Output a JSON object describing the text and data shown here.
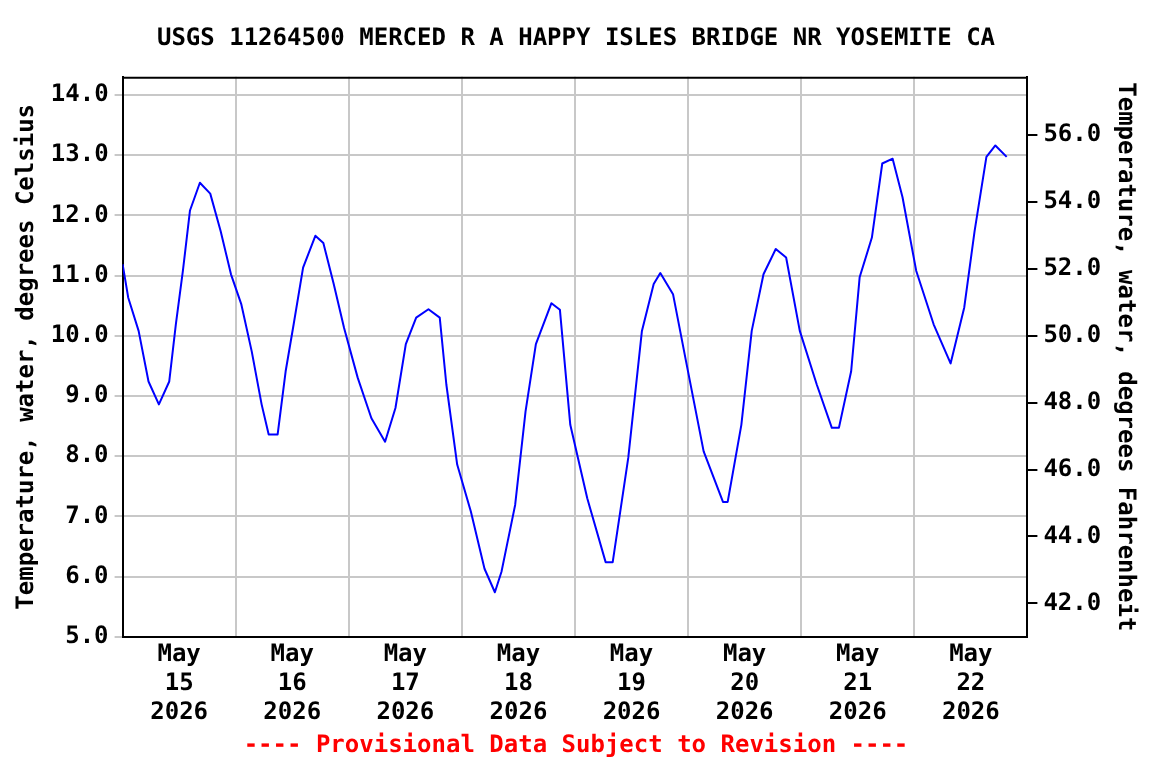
{
  "chart_data": {
    "type": "line",
    "title": "USGS 11264500 MERCED R A HAPPY ISLES BRIDGE NR YOSEMITE CA",
    "ylabel": "Temperature, water, degrees Celsius",
    "y2label": "Temperature, water, degrees Fahrenheit",
    "annotations": [
      "---- Provisional Data Subject to Revision ----"
    ],
    "x": [
      "2026-05-15T00:00",
      "2026-05-15T01:12",
      "2026-05-15T03:24",
      "2026-05-15T05:30",
      "2026-05-15T07:42",
      "2026-05-15T09:54",
      "2026-05-15T11:18",
      "2026-05-15T12:48",
      "2026-05-15T14:18",
      "2026-05-15T16:24",
      "2026-05-15T18:36",
      "2026-05-15T20:48",
      "2026-05-15T23:00",
      "2026-05-16T01:12",
      "2026-05-16T03:24",
      "2026-05-16T05:30",
      "2026-05-16T07:00",
      "2026-05-16T08:54",
      "2026-05-16T10:36",
      "2026-05-16T12:18",
      "2026-05-16T14:18",
      "2026-05-16T16:54",
      "2026-05-16T18:36",
      "2026-05-16T20:48",
      "2026-05-16T23:00",
      "2026-05-17T01:54",
      "2026-05-17T04:48",
      "2026-05-17T07:42",
      "2026-05-17T09:54",
      "2026-05-17T12:06",
      "2026-05-17T14:18",
      "2026-05-17T16:54",
      "2026-05-17T19:18",
      "2026-05-17T20:42",
      "2026-05-17T23:00",
      "2026-05-18T01:54",
      "2026-05-18T04:48",
      "2026-05-18T07:00",
      "2026-05-18T08:24",
      "2026-05-18T11:18",
      "2026-05-18T13:30",
      "2026-05-18T15:42",
      "2026-05-18T19:00",
      "2026-05-18T20:48",
      "2026-05-18T23:00",
      "2026-05-19T02:36",
      "2026-05-19T06:30",
      "2026-05-19T08:00",
      "2026-05-19T11:18",
      "2026-05-19T14:12",
      "2026-05-19T16:42",
      "2026-05-19T18:06",
      "2026-05-19T20:48",
      "2026-05-19T23:42",
      "2026-05-20T03:18",
      "2026-05-20T07:24",
      "2026-05-20T08:24",
      "2026-05-20T11:18",
      "2026-05-20T13:30",
      "2026-05-20T16:00",
      "2026-05-20T18:36",
      "2026-05-20T20:48",
      "2026-05-20T23:42",
      "2026-05-21T03:18",
      "2026-05-21T06:30",
      "2026-05-21T08:00",
      "2026-05-21T10:36",
      "2026-05-21T12:24",
      "2026-05-21T15:00",
      "2026-05-21T17:12",
      "2026-05-21T19:24",
      "2026-05-21T21:30",
      "2026-05-22T00:24",
      "2026-05-22T04:06",
      "2026-05-22T07:42",
      "2026-05-22T10:36",
      "2026-05-22T12:48",
      "2026-05-22T15:18",
      "2026-05-22T17:12",
      "2026-05-22T19:36"
    ],
    "series": [
      {
        "color": "#0000ff",
        "values": [
          11.19,
          10.63,
          10.08,
          9.24,
          8.86,
          9.24,
          10.19,
          11.08,
          12.08,
          12.54,
          12.36,
          11.74,
          11.02,
          10.52,
          9.74,
          8.86,
          8.36,
          8.36,
          9.41,
          10.19,
          11.13,
          11.66,
          11.54,
          10.86,
          10.13,
          9.3,
          8.63,
          8.24,
          8.8,
          9.86,
          10.3,
          10.44,
          10.3,
          9.19,
          7.86,
          7.08,
          6.13,
          5.74,
          6.08,
          7.19,
          8.74,
          9.86,
          10.54,
          10.43,
          8.52,
          7.3,
          6.24,
          6.24,
          7.97,
          10.08,
          10.86,
          11.04,
          10.69,
          9.52,
          8.08,
          7.24,
          7.24,
          8.52,
          10.08,
          11.02,
          11.44,
          11.3,
          10.08,
          9.19,
          8.47,
          8.47,
          9.41,
          10.97,
          11.63,
          12.86,
          12.94,
          12.3,
          11.08,
          10.19,
          9.54,
          10.47,
          11.74,
          12.97,
          13.16,
          12.97
        ]
      }
    ],
    "xlim": [
      "2026-05-15T00:00",
      "2026-05-23T00:00"
    ],
    "xticks": [
      {
        "value": "2026-05-15T12:00",
        "label": "May\n15\n2026"
      },
      {
        "value": "2026-05-16T00:00",
        "label": null
      },
      {
        "value": "2026-05-16T12:00",
        "label": "May\n16\n2026"
      },
      {
        "value": "2026-05-17T00:00",
        "label": null
      },
      {
        "value": "2026-05-17T12:00",
        "label": "May\n17\n2026"
      },
      {
        "value": "2026-05-18T00:00",
        "label": null
      },
      {
        "value": "2026-05-18T12:00",
        "label": "May\n18\n2026"
      },
      {
        "value": "2026-05-19T00:00",
        "label": null
      },
      {
        "value": "2026-05-19T12:00",
        "label": "May\n19\n2026"
      },
      {
        "value": "2026-05-20T00:00",
        "label": null
      },
      {
        "value": "2026-05-20T12:00",
        "label": "May\n20\n2026"
      },
      {
        "value": "2026-05-21T00:00",
        "label": null
      },
      {
        "value": "2026-05-21T12:00",
        "label": "May\n21\n2026"
      },
      {
        "value": "2026-05-22T00:00",
        "label": null
      },
      {
        "value": "2026-05-22T12:00",
        "label": "May\n22\n2026"
      }
    ],
    "ylim": [
      5,
      14.3
    ],
    "yticks": [
      {
        "value": 5,
        "label": "5.0"
      },
      {
        "value": 6,
        "label": "6.0"
      },
      {
        "value": 7,
        "label": "7.0"
      },
      {
        "value": 8,
        "label": "8.0"
      },
      {
        "value": 9,
        "label": "9.0"
      },
      {
        "value": 10,
        "label": "10.0"
      },
      {
        "value": 11,
        "label": "11.0"
      },
      {
        "value": 12,
        "label": "12.0"
      },
      {
        "value": 13,
        "label": "13.0"
      },
      {
        "value": 14,
        "label": "14.0"
      }
    ],
    "y2lim": [
      41,
      57.74
    ],
    "y2ticks": [
      {
        "value": 42,
        "label": "42.0"
      },
      {
        "value": 44,
        "label": "44.0"
      },
      {
        "value": 46,
        "label": "46.0"
      },
      {
        "value": 48,
        "label": "48.0"
      },
      {
        "value": 50,
        "label": "50.0"
      },
      {
        "value": 52,
        "label": "52.0"
      },
      {
        "value": 54,
        "label": "54.0"
      },
      {
        "value": 56,
        "label": "56.0"
      }
    ],
    "grid": true,
    "legend": false,
    "marker": "none",
    "line_style": "solid"
  }
}
